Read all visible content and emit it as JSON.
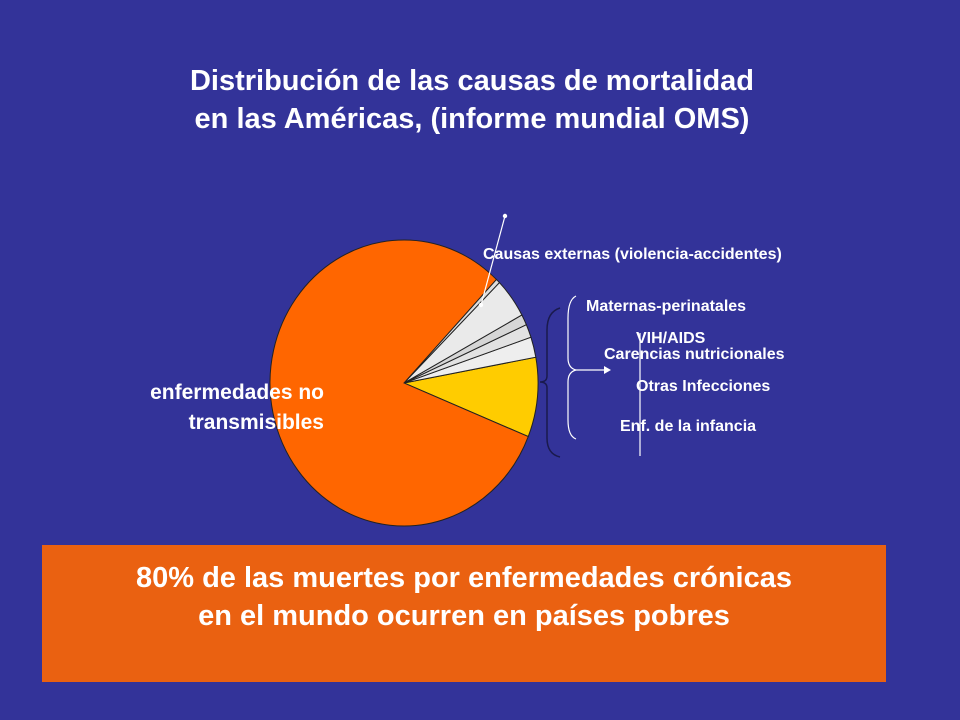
{
  "title": {
    "line1": "Distribución de las causas de mortalidad",
    "line2": "en las Américas, (informe mundial OMS)"
  },
  "chart_data": {
    "type": "pie",
    "slices": [
      {
        "label": "Causas externas (violencia-accidentes)",
        "value": 9.0,
        "color": "#ffcc00"
      },
      {
        "label": "Maternas-perinatales",
        "value": 2.3,
        "color": "#eeeeee"
      },
      {
        "label": "VIH/AIDS",
        "value": 1.5,
        "color": "#e2e2e2"
      },
      {
        "label": "Carencias nutricionales",
        "value": 1.2,
        "color": "#d6d6d6"
      },
      {
        "label": "Otras Infecciones",
        "value": 4.5,
        "color": "#eaeaea"
      },
      {
        "label": "Enf. de la infancia",
        "value": 0.5,
        "color": "#dddddd"
      },
      {
        "label": "enfermedades no transmisibles",
        "value": 81.0,
        "color": "#ff6600"
      }
    ],
    "legend": "none"
  },
  "labels": {
    "causas_externas": "Causas externas (violencia-accidentes)",
    "maternas": "Maternas-perinatales",
    "vih": "VIH/AIDS",
    "carencias": "Carencias nutricionales",
    "otras": "Otras Infecciones",
    "infancia": "Enf. de la infancia",
    "no_transmisibles_line1": "enfermedades no",
    "no_transmisibles_line2": "transmisibles"
  },
  "callout": {
    "line1": "80% de las muertes por enfermedades crónicas",
    "line2": "en el mundo ocurren en países pobres"
  },
  "colors": {
    "background": "#333399",
    "callout": "#ea6111",
    "noncommunicable": "#ff6600",
    "external": "#ffcc00"
  }
}
